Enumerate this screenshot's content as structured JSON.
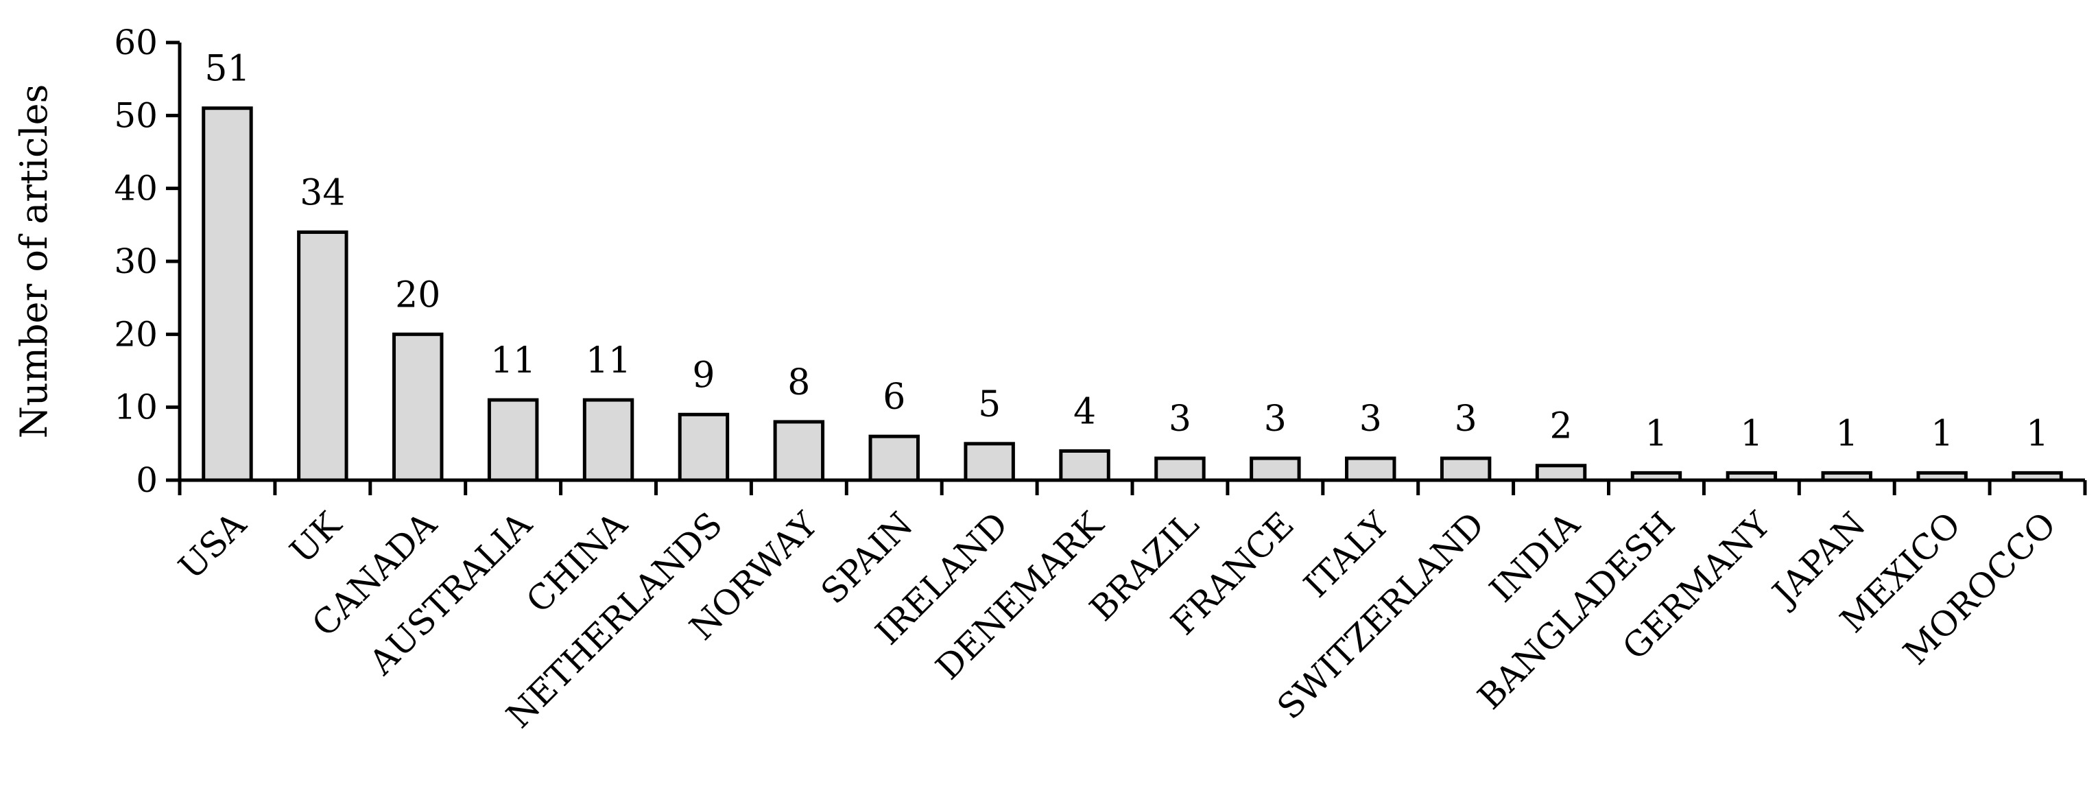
{
  "chart_data": {
    "type": "bar",
    "title": "",
    "xlabel": "",
    "ylabel": "Number of articles",
    "ylim": [
      0,
      60
    ],
    "yticks": [
      0,
      10,
      20,
      30,
      40,
      50,
      60
    ],
    "grid": false,
    "legend": "none",
    "bar_color": "#d9d9d9",
    "bar_edge_color": "#000000",
    "categories": [
      "USA",
      "UK",
      "CANADA",
      "AUSTRALIA",
      "CHINA",
      "NETHERLANDS",
      "NORWAY",
      "SPAIN",
      "IRELAND",
      "DENEMARK",
      "BRAZIL",
      "FRANCE",
      "ITALY",
      "SWITZERLAND",
      "INDIA",
      "BANGLADESH",
      "GERMANY",
      "JAPAN",
      "MEXICO",
      "MOROCCO"
    ],
    "values": [
      51,
      34,
      20,
      11,
      11,
      9,
      8,
      6,
      5,
      4,
      3,
      3,
      3,
      3,
      2,
      1,
      1,
      1,
      1,
      1
    ]
  }
}
